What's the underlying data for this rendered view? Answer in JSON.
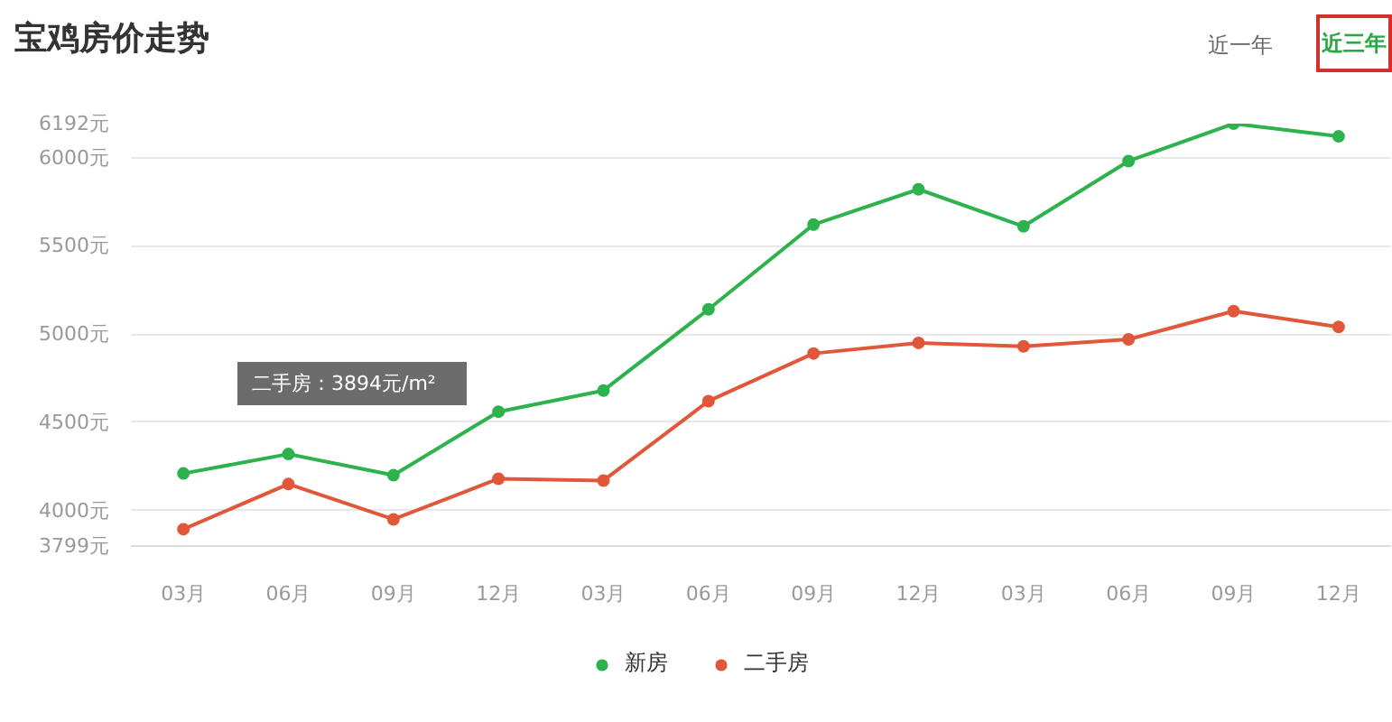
{
  "chart_data": {
    "type": "line",
    "title": "宝鸡房价走势",
    "categories": [
      "03月",
      "06月",
      "09月",
      "12月",
      "03月",
      "06月",
      "09月",
      "12月",
      "03月",
      "06月",
      "09月",
      "12月"
    ],
    "series": [
      {
        "name": "新房",
        "color": "#2db24e",
        "values": [
          4210,
          4320,
          4200,
          4560,
          4680,
          5140,
          5620,
          5820,
          5610,
          5980,
          6192,
          6120
        ]
      },
      {
        "name": "二手房",
        "color": "#e0573a",
        "values": [
          3894,
          4150,
          3950,
          4180,
          4170,
          4620,
          4890,
          4950,
          4930,
          4970,
          5130,
          5040
        ]
      }
    ],
    "ylim": [
      3799,
      6192
    ],
    "yticks": [
      {
        "value": 3799,
        "label": "3799元"
      },
      {
        "value": 4000,
        "label": "4000元"
      },
      {
        "value": 4500,
        "label": "4500元"
      },
      {
        "value": 5000,
        "label": "5000元"
      },
      {
        "value": 5500,
        "label": "5500元"
      },
      {
        "value": 6000,
        "label": "6000元"
      },
      {
        "value": 6192,
        "label": "6192元"
      }
    ],
    "grid": "y",
    "legend": "bottom",
    "marker": "circle",
    "line_style": "solid",
    "annotations": [
      "近一年",
      "近三年",
      "二手房：3894元/m²"
    ]
  }
}
